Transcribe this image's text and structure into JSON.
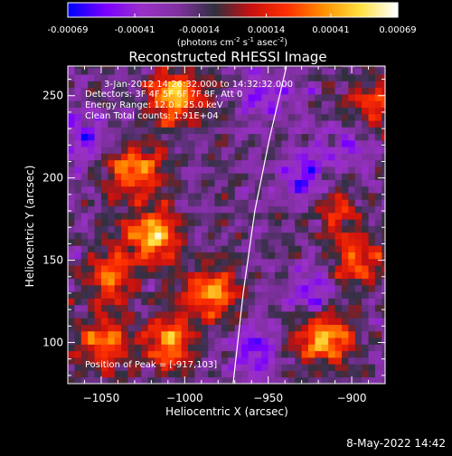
{
  "colorbar": {
    "tick_labels": [
      "-0.00069",
      "-0.00041",
      "-0.00014",
      "0.00014",
      "0.00041",
      "0.00069"
    ],
    "tick_values": [
      -0.00069,
      -0.00041,
      -0.00014,
      0.00014,
      0.00041,
      0.00069
    ],
    "units_prefix": "(photons cm",
    "units_sup1": "-2",
    "units_mid1": " s",
    "units_sup2": "-1",
    "units_mid2": " asec",
    "units_sup3": "-2",
    "units_suffix": ")"
  },
  "annotations": {
    "time_range": "3-Jan-2012 14:26:32.000 to 14:32:32.000",
    "detectors": "Detectors: 3F 4F 5F 6F 7F 8F, Att 0",
    "energy_range": "Energy Range: 12.0 - 25.0 keV",
    "clean_total": "Clean     Total counts: 1.91E+04",
    "peak_position": "Position of Peak = [-917,103]"
  },
  "footer": {
    "date": "8-May-2022 14:42"
  },
  "chart_data": {
    "type": "heatmap",
    "title": "Reconstructed RHESSI Image",
    "xlabel": "Heliocentric X (arcsec)",
    "ylabel": "Heliocentric Y (arcsec)",
    "xlim": [
      -1070,
      -880
    ],
    "ylim": [
      75,
      268
    ],
    "x_ticks": [
      -1050,
      -1000,
      -950,
      -900
    ],
    "x_tick_labels": [
      "−1050",
      "−1000",
      "−950",
      "−900"
    ],
    "y_ticks": [
      100,
      150,
      200,
      250
    ],
    "y_tick_labels": [
      "100",
      "150",
      "200",
      "250"
    ],
    "value_range": [
      -0.00069,
      0.00069
    ],
    "colormap": [
      "#0000ff",
      "#7a00ff",
      "#9a30c8",
      "#8030a0",
      "#303040",
      "#c81010",
      "#ff3000",
      "#ff9000",
      "#ffe040",
      "#ffffff"
    ],
    "limb_curve": [
      [
        -971,
        75
      ],
      [
        -965,
        130
      ],
      [
        -958,
        180
      ],
      [
        -949,
        225
      ],
      [
        -939,
        268
      ]
    ],
    "bright_regions": [
      {
        "x": -1020,
        "y": 165,
        "value": 0.00069
      },
      {
        "x": -1030,
        "y": 205,
        "value": 0.0006
      },
      {
        "x": -1005,
        "y": 250,
        "value": 0.00069
      },
      {
        "x": -985,
        "y": 130,
        "value": 0.0006
      },
      {
        "x": -1045,
        "y": 140,
        "value": 0.00045
      },
      {
        "x": -1050,
        "y": 100,
        "value": 0.0005
      },
      {
        "x": -1010,
        "y": 100,
        "value": 0.00055
      },
      {
        "x": -917,
        "y": 103,
        "value": 0.00069
      },
      {
        "x": -895,
        "y": 150,
        "value": 0.00045
      },
      {
        "x": -888,
        "y": 245,
        "value": 0.0004
      },
      {
        "x": -910,
        "y": 180,
        "value": 0.0003
      }
    ],
    "dark_regions": [
      {
        "x": -1058,
        "y": 225,
        "value": -0.0003
      },
      {
        "x": -930,
        "y": 200,
        "value": -0.00035
      },
      {
        "x": -950,
        "y": 250,
        "value": -0.0003
      },
      {
        "x": -925,
        "y": 130,
        "value": -0.0003
      },
      {
        "x": -960,
        "y": 95,
        "value": -0.00035
      },
      {
        "x": -905,
        "y": 220,
        "value": -0.00025
      }
    ]
  }
}
